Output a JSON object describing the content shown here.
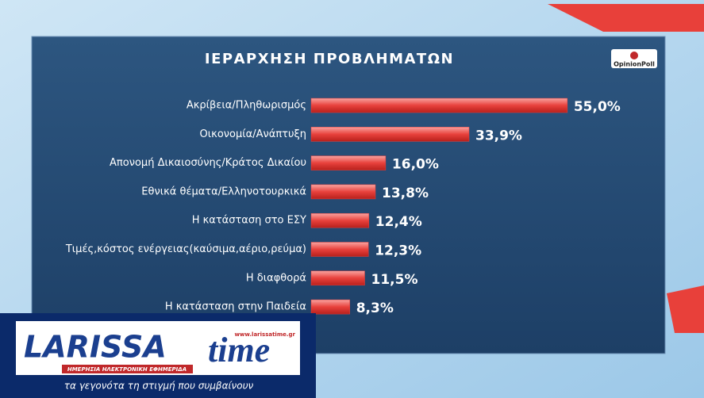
{
  "chart_data": {
    "type": "bar",
    "orientation": "horizontal",
    "title": "ΙΕΡΑΡΧΗΣΗ ΠΡΟΒΛΗΜΑΤΩΝ",
    "source": "OpinionPoll",
    "categories": [
      "Ακρίβεια/Πληθωρισμός",
      "Οικονομία/Ανάπτυξη",
      "Απονομή Δικαιοσύνης/Κράτος Δικαίου",
      "Εθνικά θέματα/Ελληνοτουρκικά",
      "Η κατάσταση στο ΕΣΥ",
      "Τιμές,κόστος ενέργειας(καύσιμα,αέριο,ρεύμα)",
      "Η διαφθορά",
      "Η κατάσταση στην Παιδεία"
    ],
    "values": [
      55.0,
      33.9,
      16.0,
      13.8,
      12.4,
      12.3,
      11.5,
      8.3
    ],
    "value_labels": [
      "55,0%",
      "33,9%",
      "16,0%",
      "13,8%",
      "12,4%",
      "12,3%",
      "11,5%",
      "8,3%"
    ],
    "color": "#e8413c"
  },
  "overlay": {
    "brand_left": "LARISSA",
    "brand_right": "time",
    "url": "www.larissatime.gr",
    "subtitle": "ΗΜΕΡΗΣΙΑ ΗΛΕΚΤΡΟΝΙΚΗ ΕΦΗΜΕΡΙΔΑ",
    "tagline": "τα γεγονότα τη στιγμή που συμβαίνουν"
  }
}
